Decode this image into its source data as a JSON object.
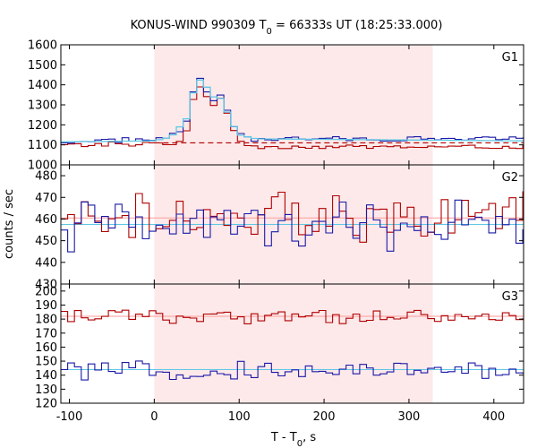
{
  "chart_data": {
    "type": "line",
    "title": "KONUS-WIND 990309 T",
    "title_sub": "0",
    "title_rest": " = 66333s UT (18:25:33.000)",
    "xlabel": "T - T",
    "xlabel_sub": "0",
    "xlabel_rest": ", s",
    "ylabel": "counts / sec",
    "xlim": [
      -110,
      435
    ],
    "xticks": [
      -100,
      0,
      100,
      200,
      300,
      400
    ],
    "grid": false,
    "shaded_interval": [
      0,
      328
    ],
    "colors": {
      "red": "#b00000",
      "blue": "#1a1aa8",
      "cyan": "#5fc8e6",
      "pink": "#ff9a9a",
      "shade": "#fde9ea"
    },
    "panels": [
      {
        "label": "G1",
        "ylim": [
          1000,
          1600
        ],
        "yticks": [
          1000,
          1100,
          1200,
          1300,
          1400,
          1500,
          1600
        ],
        "background_red": 1065,
        "background_blue": 1130,
        "dashed_red_level": 1110,
        "peak": {
          "start": 45,
          "peak_time": 55,
          "end": 100
        },
        "red_profile": [
          [
            -110,
            1095
          ],
          [
            -100,
            1100
          ],
          [
            -90,
            1100
          ],
          [
            -80,
            1095
          ],
          [
            -70,
            1105
          ],
          [
            -60,
            1100
          ],
          [
            -50,
            1110
          ],
          [
            -40,
            1100
          ],
          [
            -30,
            1095
          ],
          [
            -20,
            1100
          ],
          [
            -10,
            1105
          ],
          [
            0,
            1110
          ],
          [
            10,
            1100
          ],
          [
            20,
            1105
          ],
          [
            30,
            1120
          ],
          [
            40,
            1180
          ],
          [
            50,
            1420
          ],
          [
            60,
            1360
          ],
          [
            70,
            1300
          ],
          [
            80,
            1330
          ],
          [
            90,
            1200
          ],
          [
            100,
            1130
          ],
          [
            110,
            1100
          ],
          [
            120,
            1095
          ]
        ],
        "red_tail": 1090,
        "blue_profile": [
          [
            -110,
            1120
          ],
          [
            -100,
            1110
          ],
          [
            -90,
            1120
          ],
          [
            -80,
            1125
          ],
          [
            -70,
            1110
          ],
          [
            -60,
            1130
          ],
          [
            -50,
            1125
          ],
          [
            -40,
            1120
          ],
          [
            -30,
            1130
          ],
          [
            -20,
            1125
          ],
          [
            -10,
            1125
          ],
          [
            0,
            1130
          ],
          [
            10,
            1125
          ],
          [
            20,
            1150
          ],
          [
            30,
            1170
          ],
          [
            40,
            1230
          ],
          [
            50,
            1460
          ],
          [
            60,
            1370
          ],
          [
            70,
            1330
          ],
          [
            80,
            1340
          ],
          [
            90,
            1230
          ],
          [
            100,
            1150
          ],
          [
            110,
            1130
          ],
          [
            120,
            1125
          ]
        ],
        "blue_tail": 1130,
        "cyan_profile": [
          [
            -110,
            1115
          ],
          [
            0,
            1120
          ],
          [
            20,
            1140
          ],
          [
            40,
            1240
          ],
          [
            50,
            1440
          ],
          [
            60,
            1400
          ],
          [
            70,
            1340
          ],
          [
            80,
            1330
          ],
          [
            90,
            1220
          ],
          [
            100,
            1150
          ],
          [
            120,
            1130
          ],
          [
            435,
            1120
          ]
        ]
      },
      {
        "label": "G2",
        "ylim": [
          430,
          485
        ],
        "yticks": [
          430,
          440,
          450,
          460,
          470,
          480
        ],
        "red_mean": 460,
        "blue_mean": 457,
        "red_amplitude": 9,
        "blue_amplitude": 9,
        "pink_level": 460.5,
        "cyan_level": 457.5
      },
      {
        "label": "G3",
        "ylim": [
          120,
          205
        ],
        "yticks": [
          120,
          130,
          140,
          150,
          160,
          170,
          180,
          190,
          200
        ],
        "red_mean": 182,
        "blue_mean": 143,
        "red_amplitude": 4,
        "blue_amplitude": 5,
        "pink_level": 182,
        "cyan_level": 144
      }
    ]
  }
}
